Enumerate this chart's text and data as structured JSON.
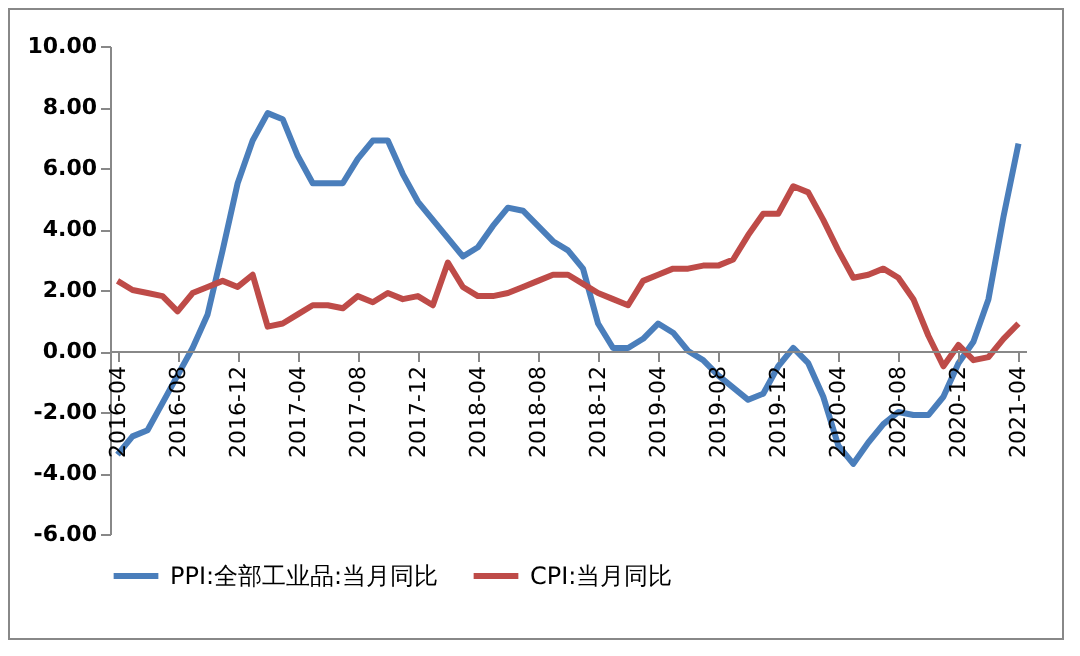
{
  "chart_data": {
    "type": "line",
    "categories": [
      "2016-04",
      null,
      null,
      null,
      "2016-08",
      null,
      null,
      null,
      "2016-12",
      null,
      null,
      null,
      "2017-04",
      null,
      null,
      null,
      "2017-08",
      null,
      null,
      null,
      "2017-12",
      null,
      null,
      null,
      "2018-04",
      null,
      null,
      null,
      "2018-08",
      null,
      null,
      null,
      "2018-12",
      null,
      null,
      null,
      "2019-04",
      null,
      null,
      null,
      "2019-08",
      null,
      null,
      null,
      "2019-12",
      null,
      null,
      null,
      "2020-04",
      null,
      null,
      null,
      "2020-08",
      null,
      null,
      null,
      "2020-12",
      null,
      null,
      null,
      "2021-04"
    ],
    "series": [
      {
        "name": "PPI:全部工业品:当月同比",
        "color": "#4a7ebb",
        "values": [
          -3.4,
          -2.8,
          -2.6,
          -1.7,
          -0.8,
          0.1,
          1.2,
          3.3,
          5.5,
          6.9,
          7.8,
          7.6,
          6.4,
          5.5,
          5.5,
          5.5,
          6.3,
          6.9,
          6.9,
          5.8,
          4.9,
          4.3,
          3.7,
          3.1,
          3.4,
          4.1,
          4.7,
          4.6,
          4.1,
          3.6,
          3.3,
          2.7,
          0.9,
          0.1,
          0.1,
          0.4,
          0.9,
          0.6,
          0.0,
          -0.3,
          -0.8,
          -1.2,
          -1.6,
          -1.4,
          -0.5,
          0.1,
          -0.4,
          -1.5,
          -3.1,
          -3.7,
          -3.0,
          -2.4,
          -2.0,
          -2.1,
          -2.1,
          -1.5,
          -0.4,
          0.3,
          1.7,
          4.4,
          6.8
        ]
      },
      {
        "name": "CPI:当月同比",
        "color": "#be4b48",
        "values": [
          2.3,
          2.0,
          1.9,
          1.8,
          1.3,
          1.9,
          2.1,
          2.3,
          2.1,
          2.5,
          0.8,
          0.9,
          1.2,
          1.5,
          1.5,
          1.4,
          1.8,
          1.6,
          1.9,
          1.7,
          1.8,
          1.5,
          2.9,
          2.1,
          1.8,
          1.8,
          1.9,
          2.1,
          2.3,
          2.5,
          2.5,
          2.2,
          1.9,
          1.7,
          1.5,
          2.3,
          2.5,
          2.7,
          2.7,
          2.8,
          2.8,
          3.0,
          3.8,
          4.5,
          4.5,
          5.4,
          5.2,
          4.3,
          3.3,
          2.4,
          2.5,
          2.7,
          2.4,
          1.7,
          0.5,
          -0.5,
          0.2,
          -0.3,
          -0.2,
          0.4,
          0.9
        ]
      }
    ],
    "ylim": [
      -6,
      10
    ],
    "yticks": [
      {
        "value": -6,
        "label": "-6.00"
      },
      {
        "value": -4,
        "label": "-4.00"
      },
      {
        "value": -2,
        "label": "-2.00"
      },
      {
        "value": 0,
        "label": "0.00"
      },
      {
        "value": 2,
        "label": "2.00"
      },
      {
        "value": 4,
        "label": "4.00"
      },
      {
        "value": 6,
        "label": "6.00"
      },
      {
        "value": 8,
        "label": "8.00"
      },
      {
        "value": 10,
        "label": "10.00"
      }
    ],
    "legend": "bottom"
  }
}
